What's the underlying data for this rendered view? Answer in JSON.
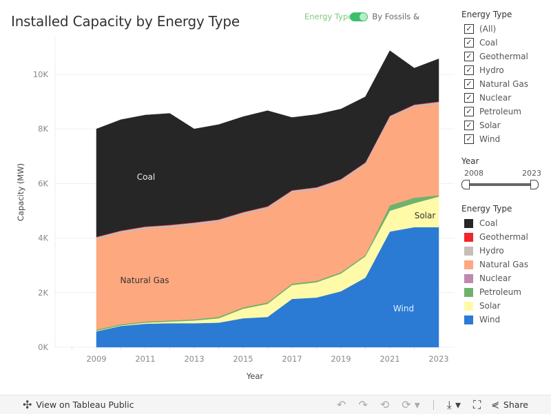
{
  "title": "Installed Capacity by Energy Type",
  "toggle": {
    "left_label": "Energy Type",
    "right_label": "By Fossils &",
    "state": "on"
  },
  "filter": {
    "title": "Energy Type",
    "items": [
      {
        "label": "(All)",
        "checked": true
      },
      {
        "label": "Coal",
        "checked": true
      },
      {
        "label": "Geothermal",
        "checked": true
      },
      {
        "label": "Hydro",
        "checked": true
      },
      {
        "label": "Natural Gas",
        "checked": true
      },
      {
        "label": "Nuclear",
        "checked": true
      },
      {
        "label": "Petroleum",
        "checked": true
      },
      {
        "label": "Solar",
        "checked": true
      },
      {
        "label": "Wind",
        "checked": true
      }
    ]
  },
  "year_filter": {
    "title": "Year",
    "min": "2008",
    "max": "2023"
  },
  "legend": {
    "title": "Energy Type",
    "items": [
      {
        "label": "Coal",
        "color": "#262626"
      },
      {
        "label": "Geothermal",
        "color": "#f2252a"
      },
      {
        "label": "Hydro",
        "color": "#c8bcb7"
      },
      {
        "label": "Natural Gas",
        "color": "#fda87e"
      },
      {
        "label": "Nuclear",
        "color": "#bf88ae"
      },
      {
        "label": "Petroleum",
        "color": "#6fb26d"
      },
      {
        "label": "Solar",
        "color": "#fffaa8"
      },
      {
        "label": "Wind",
        "color": "#2b7bd4"
      }
    ]
  },
  "footer": {
    "view_label": "View on Tableau Public",
    "share_label": "Share"
  },
  "chart_data": {
    "type": "area",
    "stacked": true,
    "title": "Installed Capacity by Energy Type",
    "xlabel": "Year",
    "ylabel": "Capacity (MW)",
    "ylim": [
      0,
      11000
    ],
    "xlim": [
      2007.5,
      2024
    ],
    "yticks": [
      0,
      2000,
      4000,
      6000,
      8000,
      10000
    ],
    "ytick_labels": [
      "0K",
      "2K",
      "4K",
      "6K",
      "8K",
      "10K"
    ],
    "xticks": [
      2009,
      2011,
      2013,
      2015,
      2017,
      2019,
      2021,
      2023
    ],
    "grid": true,
    "x": [
      2009,
      2010,
      2011,
      2012,
      2013,
      2014,
      2015,
      2016,
      2017,
      2018,
      2019,
      2020,
      2021,
      2022,
      2023
    ],
    "series": [
      {
        "name": "Wind",
        "color": "#2b7bd4",
        "values": [
          580,
          780,
          860,
          880,
          880,
          900,
          1060,
          1110,
          1770,
          1820,
          2050,
          2550,
          4240,
          4400,
          4400
        ]
      },
      {
        "name": "Solar",
        "color": "#fffaa8",
        "values": [
          20,
          20,
          40,
          60,
          100,
          160,
          350,
          480,
          510,
          560,
          650,
          780,
          760,
          880,
          1120
        ]
      },
      {
        "name": "Petroleum",
        "color": "#6fb26d",
        "values": [
          40,
          40,
          40,
          40,
          40,
          50,
          50,
          50,
          50,
          50,
          50,
          50,
          200,
          200,
          50
        ]
      },
      {
        "name": "Natural Gas",
        "color": "#fda87e",
        "values": [
          3320,
          3350,
          3400,
          3420,
          3470,
          3490,
          3410,
          3440,
          3340,
          3350,
          3330,
          3310,
          3200,
          3330,
          3350
        ]
      },
      {
        "name": "Nuclear",
        "color": "#bf88ae",
        "values": [
          0,
          0,
          0,
          0,
          0,
          0,
          0,
          0,
          0,
          0,
          0,
          0,
          0,
          0,
          0
        ]
      },
      {
        "name": "Hydro",
        "color": "#c8bcb7",
        "values": [
          70,
          70,
          70,
          70,
          70,
          70,
          70,
          70,
          70,
          70,
          70,
          70,
          70,
          70,
          70
        ]
      },
      {
        "name": "Geothermal",
        "color": "#f2252a",
        "values": [
          20,
          20,
          20,
          20,
          20,
          20,
          20,
          20,
          20,
          20,
          20,
          20,
          20,
          20,
          20
        ]
      },
      {
        "name": "Coal",
        "color": "#262626",
        "values": [
          3950,
          4060,
          4080,
          4080,
          3420,
          3470,
          3490,
          3500,
          2660,
          2660,
          2560,
          2400,
          2380,
          1330,
          1560
        ]
      }
    ],
    "annotations": [
      {
        "text": "Coal",
        "series": "Coal"
      },
      {
        "text": "Natural Gas",
        "series": "Natural Gas"
      },
      {
        "text": "Solar",
        "series": "Solar"
      },
      {
        "text": "Wind",
        "series": "Wind"
      }
    ]
  }
}
